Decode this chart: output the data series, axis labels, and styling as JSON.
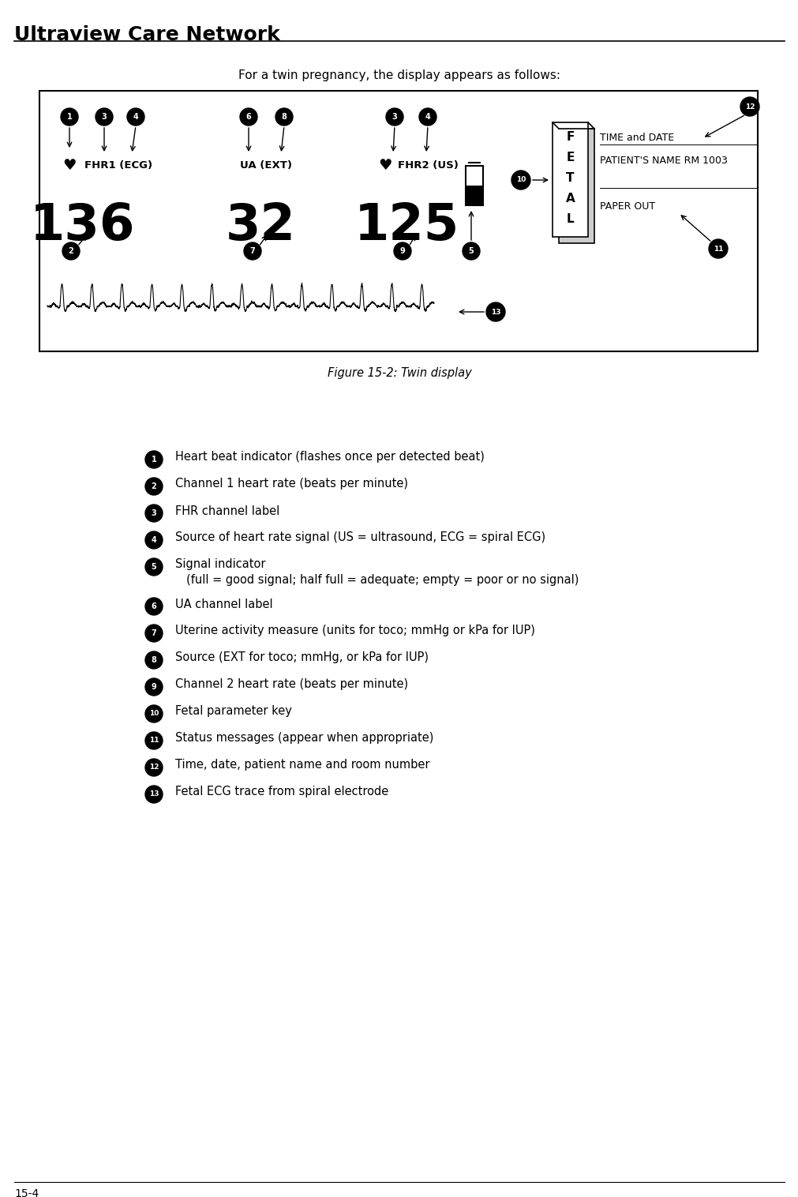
{
  "title": "Ultraview Care Network",
  "subtitle": "For a twin pregnancy, the display appears as follows:",
  "figure_caption": "Figure 15-2: Twin display",
  "bg_color": "#ffffff",
  "display": {
    "fhr1_value": "136",
    "ua_value": "32",
    "fhr2_value": "125",
    "fhr1_label": "FHR1 (ECG)",
    "ua_label": "UA (EXT)",
    "fhr2_label": "FHR2 (US)",
    "fetal_key": [
      "F",
      "E",
      "T",
      "A",
      "L"
    ]
  },
  "legend": [
    {
      "num": "1",
      "text": "Heart beat indicator (flashes once per detected beat)",
      "extra": ""
    },
    {
      "num": "2",
      "text": "Channel 1 heart rate (beats per minute)",
      "extra": ""
    },
    {
      "num": "3",
      "text": "FHR channel label",
      "extra": ""
    },
    {
      "num": "4",
      "text": "Source of heart rate signal (US = ultrasound, ECG = spiral ECG)",
      "extra": ""
    },
    {
      "num": "5",
      "text": "Signal indicator",
      "extra": "(full = good signal; half full = adequate; empty = poor or no signal)"
    },
    {
      "num": "6",
      "text": "UA channel label",
      "extra": ""
    },
    {
      "num": "7",
      "text": "Uterine activity measure (units for toco; mmHg or kPa for IUP)",
      "extra": ""
    },
    {
      "num": "8",
      "text": "Source (EXT for toco; mmHg, or kPa for IUP)",
      "extra": ""
    },
    {
      "num": "9",
      "text": "Channel 2 heart rate (beats per minute)",
      "extra": ""
    },
    {
      "num": "10",
      "text": "Fetal parameter key",
      "extra": ""
    },
    {
      "num": "11",
      "text": "Status messages (appear when appropriate)",
      "extra": ""
    },
    {
      "num": "12",
      "text": "Time, date, patient name and room number",
      "extra": ""
    },
    {
      "num": "13",
      "text": "Fetal ECG trace from spiral electrode",
      "extra": ""
    }
  ],
  "page_label": "15-4"
}
